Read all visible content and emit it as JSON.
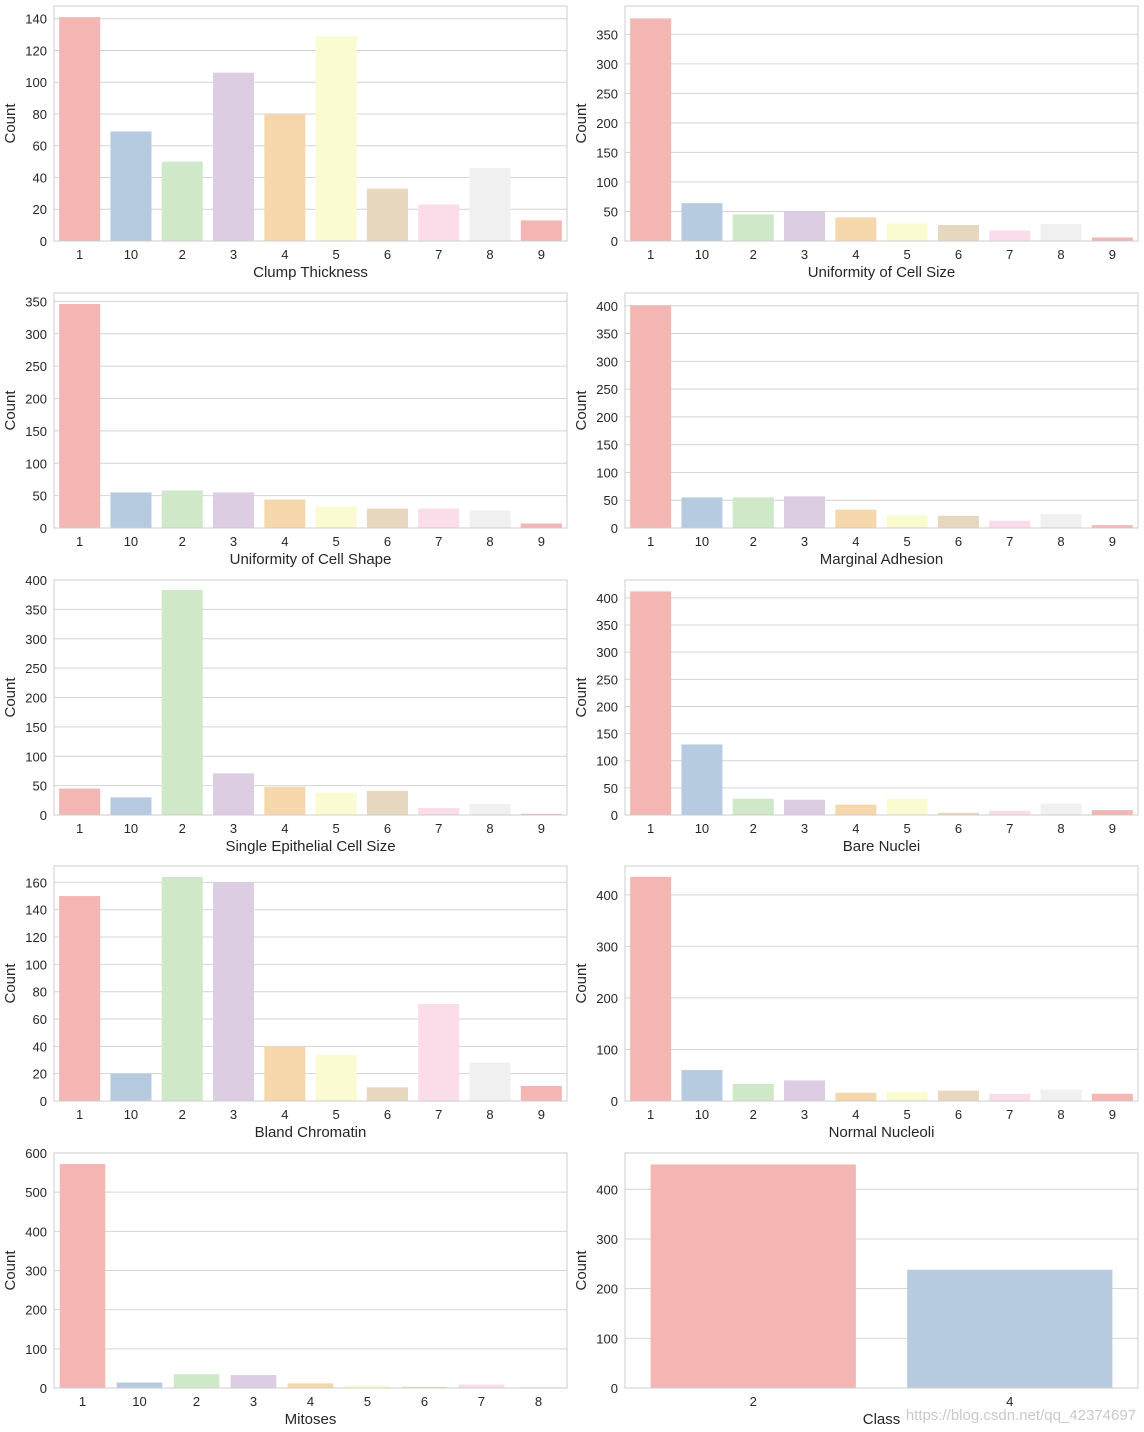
{
  "colors": [
    "#f3b6b3",
    "#b6cbe0",
    "#cfe8c8",
    "#dccde3",
    "#f6d7ab",
    "#fbfbd2",
    "#e6d7be",
    "#fbdcea",
    "#f0f0f0",
    "#f3b6b3"
  ],
  "watermark": "https://blog.csdn.net/qq_42374697",
  "chart_data": [
    {
      "type": "bar",
      "xlabel": "Clump Thickness",
      "ylabel": "Count",
      "categories": [
        "1",
        "10",
        "2",
        "3",
        "4",
        "5",
        "6",
        "7",
        "8",
        "9"
      ],
      "values": [
        141,
        69,
        50,
        106,
        80,
        129,
        33,
        23,
        46,
        13
      ],
      "ylim": [
        0,
        148
      ],
      "yticks": [
        0,
        20,
        40,
        60,
        80,
        100,
        120,
        140
      ]
    },
    {
      "type": "bar",
      "xlabel": "Uniformity of Cell Size",
      "ylabel": "Count",
      "categories": [
        "1",
        "10",
        "2",
        "3",
        "4",
        "5",
        "6",
        "7",
        "8",
        "9"
      ],
      "values": [
        377,
        64,
        45,
        51,
        40,
        30,
        27,
        18,
        29,
        6
      ],
      "ylim": [
        0,
        398
      ],
      "yticks": [
        0,
        50,
        100,
        150,
        200,
        250,
        300,
        350
      ]
    },
    {
      "type": "bar",
      "xlabel": "Uniformity of Cell Shape",
      "ylabel": "Count",
      "categories": [
        "1",
        "10",
        "2",
        "3",
        "4",
        "5",
        "6",
        "7",
        "8",
        "9"
      ],
      "values": [
        346,
        55,
        58,
        55,
        44,
        33,
        30,
        30,
        27,
        7
      ],
      "ylim": [
        0,
        363
      ],
      "yticks": [
        0,
        50,
        100,
        150,
        200,
        250,
        300,
        350
      ]
    },
    {
      "type": "bar",
      "xlabel": "Marginal Adhesion",
      "ylabel": "Count",
      "categories": [
        "1",
        "10",
        "2",
        "3",
        "4",
        "5",
        "6",
        "7",
        "8",
        "9"
      ],
      "values": [
        401,
        55,
        55,
        57,
        33,
        23,
        22,
        13,
        25,
        5
      ],
      "ylim": [
        0,
        423
      ],
      "yticks": [
        0,
        50,
        100,
        150,
        200,
        250,
        300,
        350,
        400
      ]
    },
    {
      "type": "bar",
      "xlabel": "Single Epithelial Cell Size",
      "ylabel": "Count",
      "categories": [
        "1",
        "10",
        "2",
        "3",
        "4",
        "5",
        "6",
        "7",
        "8",
        "9"
      ],
      "values": [
        45,
        30,
        383,
        71,
        48,
        38,
        41,
        12,
        19,
        2
      ],
      "ylim": [
        0,
        400
      ],
      "yticks": [
        0,
        50,
        100,
        150,
        200,
        250,
        300,
        350,
        400
      ]
    },
    {
      "type": "bar",
      "xlabel": "Bare Nuclei",
      "ylabel": "Count",
      "categories": [
        "1",
        "10",
        "2",
        "3",
        "4",
        "5",
        "6",
        "7",
        "8",
        "9"
      ],
      "values": [
        412,
        130,
        30,
        28,
        19,
        30,
        4,
        8,
        21,
        9
      ],
      "ylim": [
        0,
        433
      ],
      "yticks": [
        0,
        50,
        100,
        150,
        200,
        250,
        300,
        350,
        400
      ]
    },
    {
      "type": "bar",
      "xlabel": "Bland Chromatin",
      "ylabel": "Count",
      "categories": [
        "1",
        "10",
        "2",
        "3",
        "4",
        "5",
        "6",
        "7",
        "8",
        "9"
      ],
      "values": [
        150,
        20,
        164,
        160,
        40,
        34,
        10,
        71,
        28,
        11
      ],
      "ylim": [
        0,
        172
      ],
      "yticks": [
        0,
        20,
        40,
        60,
        80,
        100,
        120,
        140,
        160
      ]
    },
    {
      "type": "bar",
      "xlabel": "Normal Nucleoli",
      "ylabel": "Count",
      "categories": [
        "1",
        "10",
        "2",
        "3",
        "4",
        "5",
        "6",
        "7",
        "8",
        "9"
      ],
      "values": [
        435,
        60,
        33,
        40,
        16,
        18,
        20,
        14,
        22,
        14
      ],
      "ylim": [
        0,
        456
      ],
      "yticks": [
        0,
        100,
        200,
        300,
        400
      ]
    },
    {
      "type": "bar",
      "xlabel": "Mitoses",
      "ylabel": "Count",
      "categories": [
        "1",
        "10",
        "2",
        "3",
        "4",
        "5",
        "6",
        "7",
        "8"
      ],
      "values": [
        572,
        14,
        35,
        33,
        12,
        6,
        3,
        9,
        2
      ],
      "ylim": [
        0,
        600
      ],
      "yticks": [
        0,
        100,
        200,
        300,
        400,
        500,
        600
      ]
    },
    {
      "type": "bar",
      "xlabel": "Class",
      "ylabel": "Count",
      "categories": [
        "2",
        "4"
      ],
      "values": [
        450,
        238
      ],
      "ylim": [
        0,
        473
      ],
      "yticks": [
        0,
        100,
        200,
        300,
        400
      ]
    }
  ]
}
